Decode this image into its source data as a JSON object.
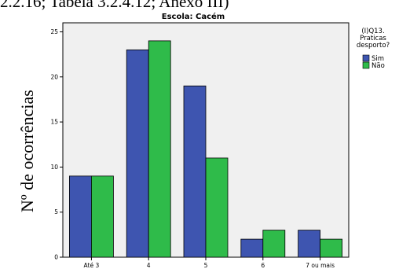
{
  "header_fragment": "2.2.16; Tabela 3.2.4.12; Anexo III)",
  "chart_data": {
    "type": "bar",
    "title": "Escola: Cacém",
    "ylabel": "Nº de ocorrências",
    "xlabel": "",
    "categories": [
      "Até 3",
      "4",
      "5",
      "6",
      "7 ou mais"
    ],
    "series": [
      {
        "name": "Sim",
        "values": [
          9,
          23,
          19,
          2,
          3
        ],
        "color": "#3e55b0"
      },
      {
        "name": "Não",
        "values": [
          9,
          24,
          11,
          3,
          2
        ],
        "color": "#2fbb4a"
      }
    ],
    "ylim": [
      0,
      26
    ],
    "yticks": [
      0,
      5,
      10,
      15,
      20,
      25
    ],
    "grid": false,
    "legend": {
      "title_lines": [
        "(I)Q13.",
        "Praticas",
        "desporto?"
      ],
      "placement": "right"
    },
    "colors": {
      "plot_background": "#f0f0f0",
      "axis": "#000000"
    }
  }
}
